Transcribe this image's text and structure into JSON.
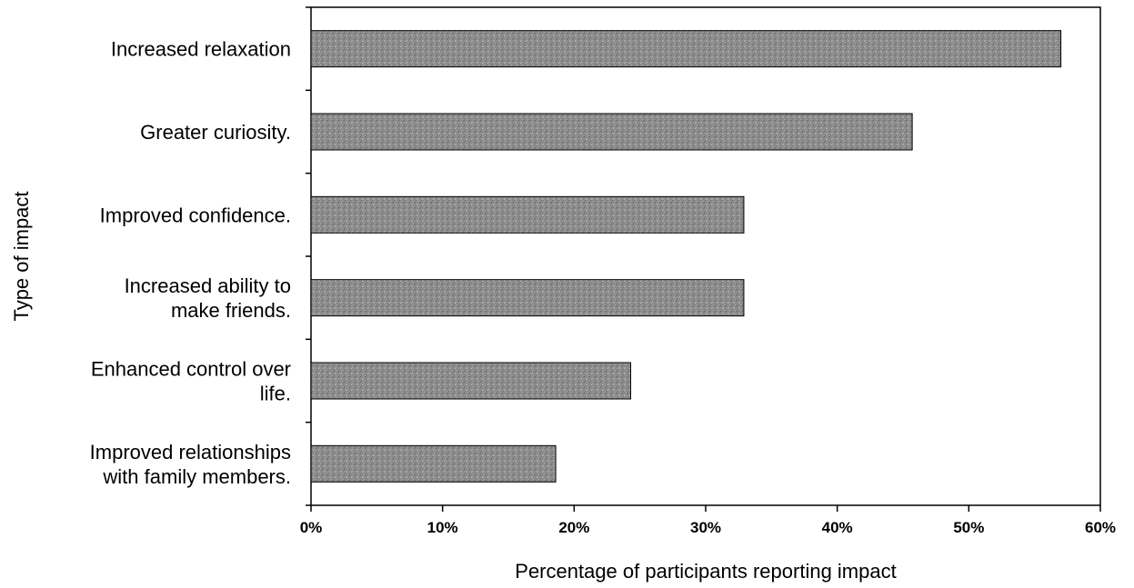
{
  "chart_data": {
    "type": "bar",
    "orientation": "horizontal",
    "title": "",
    "xlabel": "Percentage of participants reporting impact",
    "ylabel": "Type of impact",
    "xlim": [
      0,
      60
    ],
    "x_ticks": [
      "0%",
      "10%",
      "20%",
      "30%",
      "40%",
      "50%",
      "60%"
    ],
    "grid": false,
    "legend": "none",
    "bar_color": "#8c8c8c",
    "categories": [
      [
        "Increased relaxation"
      ],
      [
        "Greater curiosity."
      ],
      [
        "Improved confidence."
      ],
      [
        "Increased ability to",
        "make friends."
      ],
      [
        "Enhanced control over",
        "life."
      ],
      [
        "Improved relationships",
        "with family members."
      ]
    ],
    "values": [
      57,
      45.7,
      32.9,
      32.9,
      24.3,
      18.6
    ]
  }
}
